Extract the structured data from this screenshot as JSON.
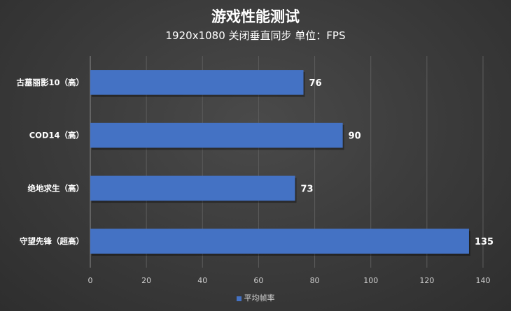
{
  "chart_data": {
    "type": "bar",
    "orientation": "horizontal",
    "title": "游戏性能测试",
    "subtitle": "1920x1080 关闭垂直同步 单位：FPS",
    "categories": [
      "古墓丽影10（高）",
      "COD14（高）",
      "绝地求生（高）",
      "守望先锋（超高）"
    ],
    "series": [
      {
        "name": "平均帧率",
        "values": [
          76,
          90,
          73,
          135
        ],
        "color": "#4472c4"
      }
    ],
    "xlim": [
      0,
      140
    ],
    "xticks": [
      0,
      20,
      40,
      60,
      80,
      100,
      120,
      140
    ],
    "grid": true,
    "legend_position": "bottom"
  }
}
